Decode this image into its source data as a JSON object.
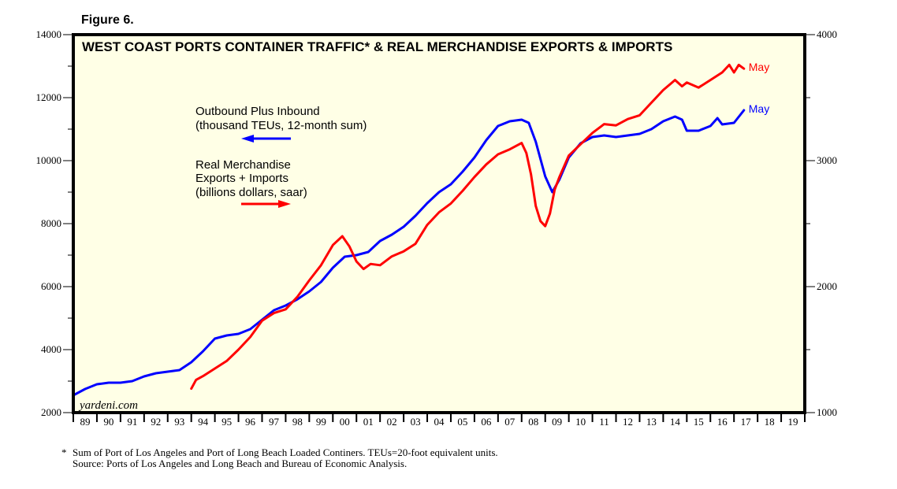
{
  "figure_label": "Figure 6.",
  "watermark": "yardeni.com",
  "footnotes": [
    "*",
    "Sum of Port of Los Angeles and Port of Long Beach Loaded Continers. TEUs=20-foot equivalent units.",
    "Source: Ports of Los Angeles and Long Beach and Bureau of Economic Analysis."
  ],
  "colors": {
    "plot_background": "#ffffe6",
    "blue_series": "#0000ff",
    "red_series": "#ff0000",
    "frame": "#000000"
  },
  "chart_data": {
    "type": "line",
    "title": "WEST COAST PORTS CONTAINER TRAFFIC* & REAL MERCHANDISE EXPORTS & IMPORTS",
    "xlabel": "",
    "x_range": [
      1989,
      2020
    ],
    "x_tick_labels": [
      "89",
      "90",
      "91",
      "92",
      "93",
      "94",
      "95",
      "96",
      "97",
      "98",
      "99",
      "00",
      "01",
      "02",
      "03",
      "04",
      "05",
      "06",
      "07",
      "08",
      "09",
      "10",
      "11",
      "12",
      "13",
      "14",
      "15",
      "16",
      "17",
      "18",
      "19"
    ],
    "y_left": {
      "label": "thousand TEUs",
      "ylim": [
        2000,
        14000
      ],
      "ticks": [
        2000,
        4000,
        6000,
        8000,
        10000,
        12000,
        14000
      ]
    },
    "y_right": {
      "label": "billions dollars, saar",
      "ylim": [
        1000,
        4000
      ],
      "ticks": [
        1000,
        2000,
        3000,
        4000
      ]
    },
    "grid": false,
    "legend": [
      {
        "lines": [
          "Outbound Plus Inbound",
          "(thousand TEUs, 12-month sum)"
        ],
        "series": "blue",
        "arrow": "left"
      },
      {
        "lines": [
          "Real Merchandise",
          "Exports + Imports",
          "(billions dollars, saar)"
        ],
        "series": "red",
        "arrow": "right"
      }
    ],
    "series": [
      {
        "name": "Outbound Plus Inbound (thousand TEUs, 12-month sum)",
        "axis": "left",
        "color": "#0000ff",
        "end_label": "May",
        "x": [
          1989.0,
          1989.5,
          1990.0,
          1990.5,
          1991.0,
          1991.5,
          1992.0,
          1992.5,
          1993.0,
          1993.5,
          1994.0,
          1994.5,
          1995.0,
          1995.5,
          1996.0,
          1996.5,
          1997.0,
          1997.5,
          1998.0,
          1998.5,
          1999.0,
          1999.5,
          2000.0,
          2000.5,
          2001.0,
          2001.5,
          2002.0,
          2002.5,
          2003.0,
          2003.5,
          2004.0,
          2004.5,
          2005.0,
          2005.5,
          2006.0,
          2006.5,
          2007.0,
          2007.5,
          2008.0,
          2008.3,
          2008.6,
          2009.0,
          2009.3,
          2009.6,
          2010.0,
          2010.5,
          2011.0,
          2011.5,
          2012.0,
          2012.5,
          2013.0,
          2013.5,
          2014.0,
          2014.5,
          2014.8,
          2015.0,
          2015.5,
          2016.0,
          2016.3,
          2016.5,
          2017.0,
          2017.42
        ],
        "y": [
          2550,
          2750,
          2900,
          2950,
          2950,
          3000,
          3150,
          3250,
          3300,
          3350,
          3600,
          3950,
          4350,
          4450,
          4500,
          4650,
          4950,
          5250,
          5400,
          5600,
          5850,
          6150,
          6600,
          6950,
          7000,
          7100,
          7450,
          7650,
          7900,
          8250,
          8650,
          9000,
          9250,
          9650,
          10100,
          10650,
          11100,
          11250,
          11300,
          11200,
          10600,
          9500,
          9000,
          9400,
          10100,
          10550,
          10750,
          10800,
          10750,
          10800,
          10850,
          11000,
          11250,
          11400,
          11300,
          10950,
          10950,
          11100,
          11350,
          11150,
          11200,
          11600
        ]
      },
      {
        "name": "Real Merchandise Exports + Imports (billions dollars, saar)",
        "axis": "right",
        "color": "#ff0000",
        "end_label": "May",
        "x": [
          1994.0,
          1994.2,
          1994.5,
          1995.0,
          1995.5,
          1996.0,
          1996.5,
          1997.0,
          1997.5,
          1998.0,
          1998.5,
          1999.0,
          1999.5,
          2000.0,
          2000.4,
          2000.7,
          2001.0,
          2001.3,
          2001.6,
          2002.0,
          2002.5,
          2003.0,
          2003.5,
          2004.0,
          2004.5,
          2005.0,
          2005.5,
          2006.0,
          2006.5,
          2007.0,
          2007.5,
          2008.0,
          2008.2,
          2008.4,
          2008.6,
          2008.8,
          2009.0,
          2009.2,
          2009.4,
          2009.6,
          2010.0,
          2010.5,
          2011.0,
          2011.5,
          2012.0,
          2012.5,
          2013.0,
          2013.5,
          2014.0,
          2014.5,
          2014.8,
          2015.0,
          2015.5,
          2016.0,
          2016.5,
          2016.8,
          2017.0,
          2017.2,
          2017.42
        ],
        "y": [
          1190,
          1260,
          1290,
          1350,
          1410,
          1500,
          1600,
          1730,
          1790,
          1820,
          1920,
          2050,
          2170,
          2330,
          2400,
          2320,
          2200,
          2140,
          2180,
          2170,
          2240,
          2280,
          2340,
          2490,
          2590,
          2660,
          2760,
          2870,
          2970,
          3050,
          3090,
          3140,
          3060,
          2890,
          2640,
          2520,
          2480,
          2580,
          2770,
          2870,
          3040,
          3130,
          3220,
          3290,
          3280,
          3330,
          3360,
          3460,
          3560,
          3640,
          3590,
          3620,
          3580,
          3640,
          3700,
          3760,
          3700,
          3760,
          3730
        ]
      }
    ]
  }
}
